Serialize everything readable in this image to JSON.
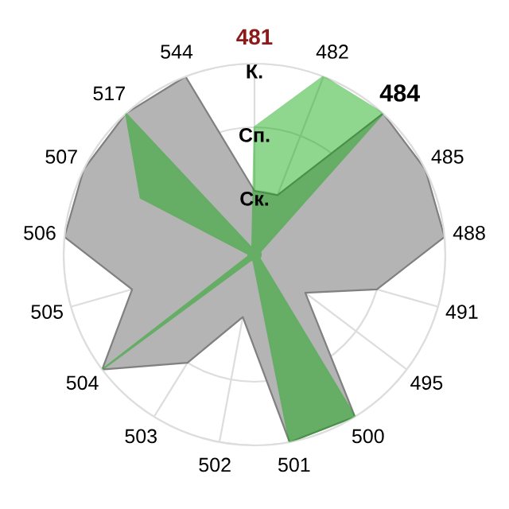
{
  "chart_data": {
    "type": "radar",
    "categories": [
      "481",
      "482",
      "484",
      "485",
      "488",
      "491",
      "495",
      "500",
      "501",
      "502",
      "503",
      "504",
      "505",
      "506",
      "507",
      "517",
      "544"
    ],
    "series": [
      {
        "color": "#b4b4b4",
        "values": [
          1,
          1,
          3,
          3,
          3,
          2,
          1,
          3,
          3,
          1,
          2,
          3,
          2,
          3,
          3,
          3,
          3
        ]
      },
      {
        "color": "#07a407",
        "values": [
          2,
          3,
          3,
          0.1,
          0.1,
          0.1,
          0.1,
          3,
          3,
          0.1,
          0.1,
          3,
          0.1,
          0.1,
          2,
          3,
          0.1
        ]
      }
    ],
    "ylim": [
      0,
      3
    ],
    "yticks": [
      {
        "value": 1,
        "label": "Ск."
      },
      {
        "value": 2,
        "label": "Сп."
      },
      {
        "value": 3,
        "label": "К."
      }
    ],
    "grid": true,
    "legend": false
  }
}
